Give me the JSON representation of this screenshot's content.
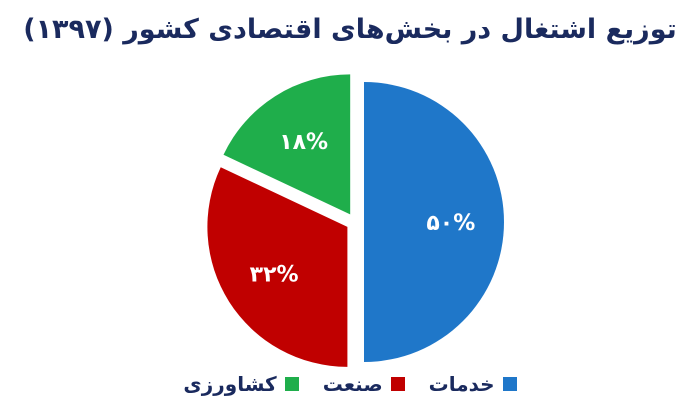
{
  "chart_data": {
    "type": "pie",
    "title": "توزیع اشتغال در بخش‌های اقتصادی کشور (۱۳۹۷)",
    "slices": [
      {
        "name": "خدمات",
        "value": 50,
        "label": "۵۰%",
        "color": "#1f77c9"
      },
      {
        "name": "صنعت",
        "value": 32,
        "label": "۳۲%",
        "color": "#c00000"
      },
      {
        "name": "کشاورزی",
        "value": 18,
        "label": "۱۸%",
        "color": "#1fae4b"
      }
    ],
    "legend_position": "bottom"
  }
}
